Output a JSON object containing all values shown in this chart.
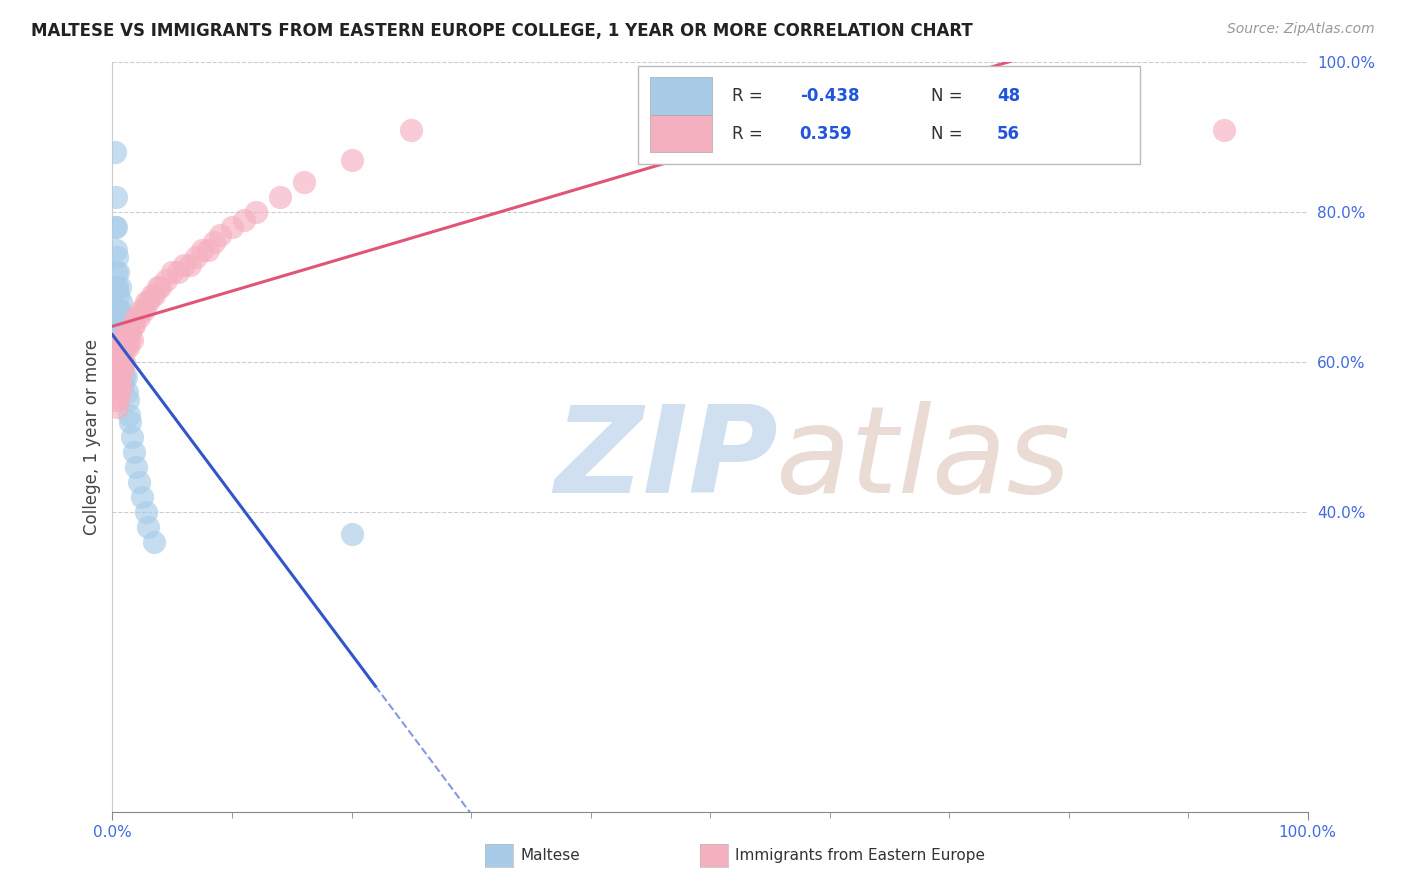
{
  "title": "MALTESE VS IMMIGRANTS FROM EASTERN EUROPE COLLEGE, 1 YEAR OR MORE CORRELATION CHART",
  "source": "Source: ZipAtlas.com",
  "ylabel": "College, 1 year or more",
  "background_color": "#ffffff",
  "legend_r_blue": "-0.438",
  "legend_n_blue": "48",
  "legend_r_pink": "0.359",
  "legend_n_pink": "56",
  "blue_scatter_color": "#a8cce8",
  "pink_scatter_color": "#f5b0c0",
  "blue_line_color": "#3355cc",
  "pink_line_color": "#e05575",
  "grid_color": "#cccccc",
  "blue_x": [
    0.002,
    0.002,
    0.003,
    0.003,
    0.003,
    0.003,
    0.003,
    0.004,
    0.004,
    0.004,
    0.005,
    0.005,
    0.005,
    0.005,
    0.005,
    0.006,
    0.006,
    0.006,
    0.006,
    0.006,
    0.006,
    0.006,
    0.007,
    0.007,
    0.007,
    0.007,
    0.007,
    0.008,
    0.008,
    0.008,
    0.009,
    0.009,
    0.01,
    0.01,
    0.011,
    0.012,
    0.013,
    0.014,
    0.015,
    0.016,
    0.018,
    0.02,
    0.022,
    0.025,
    0.028,
    0.03,
    0.035,
    0.2
  ],
  "blue_y": [
    0.88,
    0.78,
    0.82,
    0.78,
    0.75,
    0.72,
    0.7,
    0.74,
    0.7,
    0.67,
    0.72,
    0.69,
    0.67,
    0.65,
    0.63,
    0.7,
    0.67,
    0.65,
    0.63,
    0.61,
    0.59,
    0.57,
    0.68,
    0.65,
    0.62,
    0.6,
    0.57,
    0.63,
    0.6,
    0.57,
    0.6,
    0.57,
    0.62,
    0.58,
    0.58,
    0.56,
    0.55,
    0.53,
    0.52,
    0.5,
    0.48,
    0.46,
    0.44,
    0.42,
    0.4,
    0.38,
    0.36,
    0.37
  ],
  "pink_x": [
    0.003,
    0.003,
    0.004,
    0.004,
    0.004,
    0.005,
    0.005,
    0.005,
    0.006,
    0.006,
    0.006,
    0.007,
    0.007,
    0.007,
    0.008,
    0.008,
    0.009,
    0.009,
    0.01,
    0.01,
    0.011,
    0.012,
    0.013,
    0.014,
    0.015,
    0.016,
    0.017,
    0.018,
    0.02,
    0.022,
    0.024,
    0.026,
    0.028,
    0.03,
    0.033,
    0.035,
    0.038,
    0.04,
    0.045,
    0.05,
    0.055,
    0.06,
    0.065,
    0.07,
    0.075,
    0.08,
    0.085,
    0.09,
    0.1,
    0.11,
    0.12,
    0.14,
    0.16,
    0.2,
    0.25,
    0.93
  ],
  "pink_y": [
    0.58,
    0.55,
    0.6,
    0.57,
    0.54,
    0.61,
    0.58,
    0.55,
    0.62,
    0.59,
    0.56,
    0.63,
    0.6,
    0.57,
    0.63,
    0.6,
    0.62,
    0.59,
    0.63,
    0.6,
    0.62,
    0.64,
    0.62,
    0.63,
    0.64,
    0.63,
    0.65,
    0.65,
    0.66,
    0.66,
    0.67,
    0.67,
    0.68,
    0.68,
    0.69,
    0.69,
    0.7,
    0.7,
    0.71,
    0.72,
    0.72,
    0.73,
    0.73,
    0.74,
    0.75,
    0.75,
    0.76,
    0.77,
    0.78,
    0.79,
    0.8,
    0.82,
    0.84,
    0.87,
    0.91,
    0.91
  ]
}
